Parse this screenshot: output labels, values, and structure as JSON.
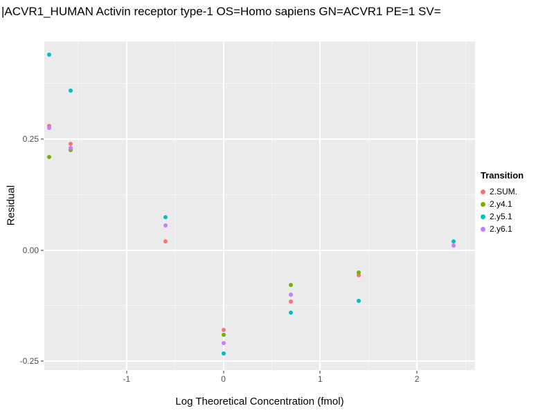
{
  "chart_data": {
    "type": "scatter",
    "title": "|ACVR1_HUMAN Activin receptor type-1 OS=Homo sapiens GN=ACVR1 PE=1 SV=",
    "xlabel": "Log Theoretical Concentration (fmol)",
    "ylabel": "Residual",
    "xlim": [
      -1.85,
      2.6
    ],
    "ylim": [
      -0.27,
      0.47
    ],
    "x_ticks": [
      -1,
      0,
      1,
      2
    ],
    "x_tick_labels": [
      "-1",
      "0",
      "1",
      "2"
    ],
    "y_ticks": [
      0.25,
      0,
      -0.25
    ],
    "y_tick_labels": [
      "0.25",
      "0.00",
      "-0.25"
    ],
    "grid": true,
    "legend_title": "Transition",
    "legend_position": "right",
    "style": {
      "panel_bg": "#EBEBEB",
      "grid_color": "#FFFFFF",
      "tick_label_color": "#4D4D4D"
    },
    "series": [
      {
        "name": "2.SUM.",
        "color": "#F8766D",
        "points": [
          [
            -1.8,
            0.28
          ],
          [
            -1.58,
            0.24
          ],
          [
            -0.6,
            0.02
          ],
          [
            0,
            -0.18
          ],
          [
            0.7,
            -0.115
          ],
          [
            1.4,
            -0.056
          ]
        ]
      },
      {
        "name": "2.y4.1",
        "color": "#7CAE00",
        "points": [
          [
            -1.8,
            0.21
          ],
          [
            -1.58,
            0.225
          ],
          [
            0,
            -0.19
          ],
          [
            0.7,
            -0.078
          ],
          [
            1.4,
            -0.05
          ]
        ]
      },
      {
        "name": "2.y5.1",
        "color": "#00BFC4",
        "points": [
          [
            -1.8,
            0.44
          ],
          [
            -1.58,
            0.36
          ],
          [
            -0.6,
            0.075
          ],
          [
            0,
            -0.232
          ],
          [
            0.7,
            -0.14
          ],
          [
            1.4,
            -0.114
          ],
          [
            2.38,
            0.02
          ]
        ]
      },
      {
        "name": "2.y6.1",
        "color": "#C77CFF",
        "points": [
          [
            -1.8,
            0.275
          ],
          [
            -1.58,
            0.23
          ],
          [
            -0.6,
            0.055
          ],
          [
            0,
            -0.21
          ],
          [
            0.7,
            -0.1
          ],
          [
            2.38,
            0.01
          ]
        ]
      }
    ]
  }
}
